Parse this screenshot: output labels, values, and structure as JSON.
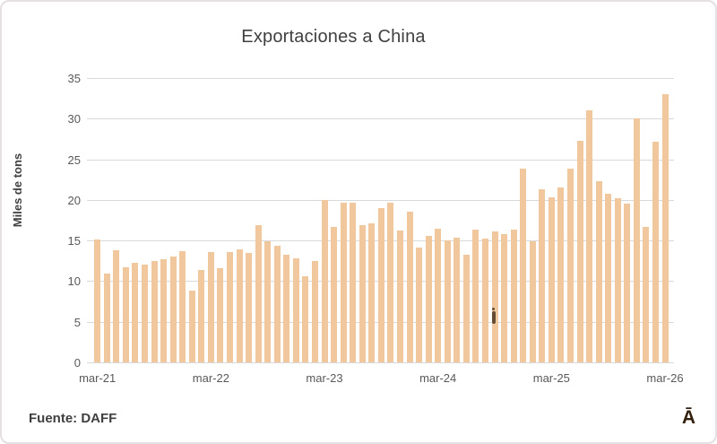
{
  "header": {
    "title_color": "#404040"
  },
  "chart_data": {
    "type": "bar",
    "title": "Exportaciones a China",
    "ylabel": "Miles de tons",
    "xlabel": "",
    "ylim": [
      0,
      35
    ],
    "yticks": [
      0,
      5,
      10,
      15,
      20,
      25,
      30,
      35
    ],
    "grid": true,
    "legend": "none",
    "bar_color": "#f1c79d",
    "gridline_color": "#d9d9d9",
    "tick_label_color": "#595959",
    "x_visible_ticks": [
      {
        "index": 0,
        "label": "mar-21"
      },
      {
        "index": 12,
        "label": "mar-22"
      },
      {
        "index": 24,
        "label": "mar-23"
      },
      {
        "index": 36,
        "label": "mar-24"
      },
      {
        "index": 48,
        "label": "mar-25"
      },
      {
        "index": 60,
        "label": "mar-26"
      }
    ],
    "categories": [
      "mar-21",
      "abr-21",
      "may-21",
      "jun-21",
      "jul-21",
      "ago-21",
      "sep-21",
      "oct-21",
      "nov-21",
      "dic-21",
      "ene-22",
      "feb-22",
      "mar-22",
      "abr-22",
      "may-22",
      "jun-22",
      "jul-22",
      "ago-22",
      "sep-22",
      "oct-22",
      "nov-22",
      "dic-22",
      "ene-23",
      "feb-23",
      "mar-23",
      "abr-23",
      "may-23",
      "jun-23",
      "jul-23",
      "ago-23",
      "sep-23",
      "oct-23",
      "nov-23",
      "dic-23",
      "ene-24",
      "feb-24",
      "mar-24",
      "abr-24",
      "may-24",
      "jun-24",
      "jul-24",
      "ago-24",
      "sep-24",
      "oct-24",
      "nov-24",
      "dic-24",
      "ene-25",
      "feb-25",
      "mar-25",
      "abr-25",
      "may-25",
      "jun-25",
      "jul-25",
      "ago-25",
      "sep-25",
      "oct-25",
      "nov-25",
      "dic-25",
      "ene-26",
      "feb-26",
      "mar-26"
    ],
    "values": [
      15.1,
      10.9,
      13.8,
      11.7,
      12.3,
      12.0,
      12.5,
      12.7,
      13.0,
      13.7,
      8.8,
      11.4,
      13.6,
      11.6,
      13.6,
      13.9,
      13.5,
      16.9,
      14.9,
      14.3,
      13.3,
      12.8,
      10.6,
      12.5,
      20.0,
      16.7,
      19.6,
      19.6,
      16.9,
      17.1,
      19.0,
      19.7,
      16.2,
      18.5,
      14.1,
      15.6,
      16.4,
      15.0,
      15.4,
      13.2,
      16.3,
      15.2,
      16.1,
      15.8,
      16.3,
      23.9,
      14.9,
      21.3,
      20.3,
      21.5,
      23.8,
      27.3,
      31.0,
      22.3,
      20.8,
      20.2,
      19.5,
      30.0,
      16.7,
      27.2,
      33.0
    ]
  },
  "footer": {
    "source": "Fuente: DAFF",
    "logo": "Ā"
  }
}
